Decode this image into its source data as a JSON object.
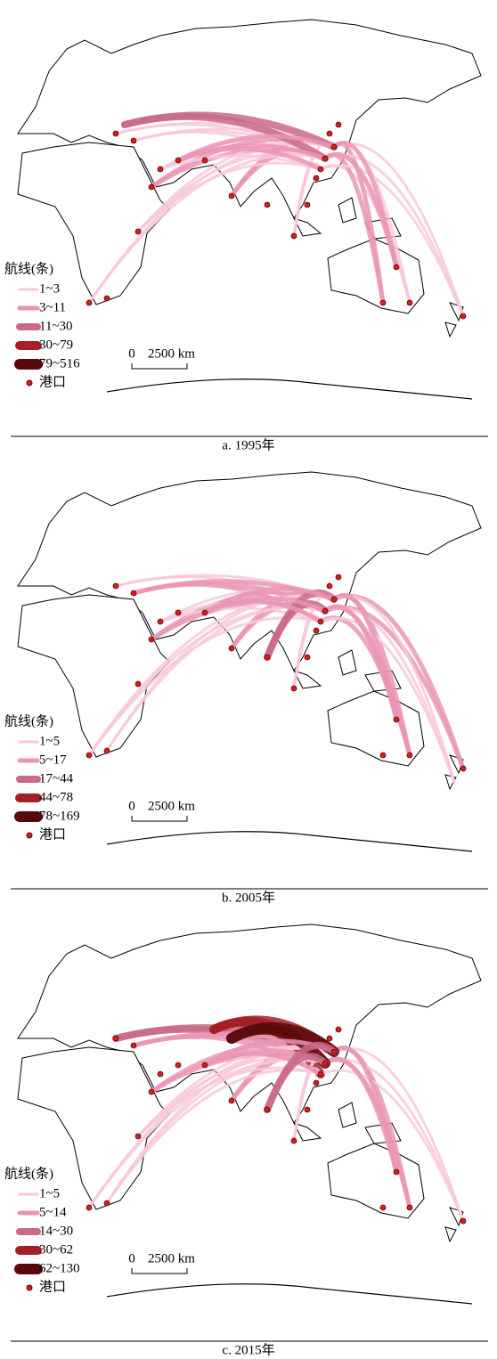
{
  "panels": [
    {
      "caption": "a. 1995年",
      "legend": {
        "title": "航线(条)",
        "items": [
          "1~3",
          "3~11",
          "11~30",
          "30~79",
          "79~516"
        ],
        "port": "港口"
      },
      "scale": {
        "zero": "0",
        "distance": "2500 km"
      }
    },
    {
      "caption": "b. 2005年",
      "legend": {
        "title": "航线(条)",
        "items": [
          "1~5",
          "5~17",
          "17~44",
          "44~78",
          "78~169"
        ],
        "port": "港口"
      },
      "scale": {
        "zero": "0",
        "distance": "2500 km"
      }
    },
    {
      "caption": "c. 2015年",
      "legend": {
        "title": "航线(条)",
        "items": [
          "1~5",
          "5~14",
          "14~30",
          "30~62",
          "62~130"
        ],
        "port": "港口"
      },
      "scale": {
        "zero": "0",
        "distance": "2500 km"
      }
    }
  ]
}
